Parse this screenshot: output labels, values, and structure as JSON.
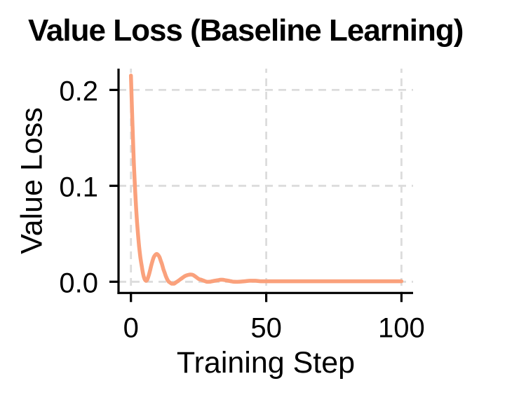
{
  "chart_data": {
    "type": "line",
    "title": "Value Loss (Baseline Learning)",
    "xlabel": "Training Step",
    "ylabel": "Value Loss",
    "x_ticks": [
      0,
      50,
      100
    ],
    "x_tick_labels": [
      "0",
      "50",
      "100"
    ],
    "y_ticks": [
      0.0,
      0.1,
      0.2
    ],
    "y_tick_labels": [
      "0.0",
      "0.1",
      "0.2"
    ],
    "xlim": [
      -4.6,
      104.3
    ],
    "ylim": [
      -0.0117,
      0.2222
    ],
    "grid": true,
    "grid_style": "dashed",
    "legend": null,
    "series": [
      {
        "name": "value-loss",
        "color": "#FAA17C",
        "points": [
          [
            0,
            0.215
          ],
          [
            0.5,
            0.168
          ],
          [
            1,
            0.128
          ],
          [
            1.5,
            0.098
          ],
          [
            2,
            0.072
          ],
          [
            2.5,
            0.053
          ],
          [
            3,
            0.037
          ],
          [
            3.5,
            0.025
          ],
          [
            4,
            0.016
          ],
          [
            4.5,
            0.008
          ],
          [
            5,
            0.003
          ],
          [
            5.5,
            0.001
          ],
          [
            6,
            0.002
          ],
          [
            6.5,
            0.006
          ],
          [
            7,
            0.011
          ],
          [
            7.5,
            0.017
          ],
          [
            8,
            0.022
          ],
          [
            8.5,
            0.026
          ],
          [
            9,
            0.028
          ],
          [
            9.5,
            0.029
          ],
          [
            10,
            0.028
          ],
          [
            10.5,
            0.026
          ],
          [
            11,
            0.022
          ],
          [
            11.5,
            0.018
          ],
          [
            12,
            0.013
          ],
          [
            12.5,
            0.009
          ],
          [
            13,
            0.005
          ],
          [
            13.5,
            0.002
          ],
          [
            14,
            0.0
          ],
          [
            14.5,
            -0.001
          ],
          [
            15,
            -0.002
          ],
          [
            15.5,
            -0.002
          ],
          [
            16,
            -0.002
          ],
          [
            16.5,
            -0.001
          ],
          [
            17,
            0.0
          ],
          [
            18,
            0.002
          ],
          [
            19,
            0.004
          ],
          [
            20,
            0.006
          ],
          [
            21,
            0.007
          ],
          [
            22,
            0.0075
          ],
          [
            23,
            0.007
          ],
          [
            24,
            0.005
          ],
          [
            25,
            0.003
          ],
          [
            26,
            0.002
          ],
          [
            27,
            0.001
          ],
          [
            28,
            0.0
          ],
          [
            29,
            0.0
          ],
          [
            30,
            0.0005
          ],
          [
            31,
            0.001
          ],
          [
            32,
            0.0015
          ],
          [
            33,
            0.002
          ],
          [
            34,
            0.002
          ],
          [
            35,
            0.0015
          ],
          [
            36,
            0.001
          ],
          [
            37,
            0.0005
          ],
          [
            38,
            0.0
          ],
          [
            40,
            0.0
          ],
          [
            42,
            0.0005
          ],
          [
            44,
            0.001
          ],
          [
            46,
            0.001
          ],
          [
            48,
            0.0005
          ],
          [
            50,
            0.0005
          ],
          [
            55,
            0.0005
          ],
          [
            60,
            0.0005
          ],
          [
            65,
            0.0005
          ],
          [
            70,
            0.0005
          ],
          [
            75,
            0.0005
          ],
          [
            80,
            0.0005
          ],
          [
            85,
            0.0005
          ],
          [
            90,
            0.0005
          ],
          [
            95,
            0.0005
          ],
          [
            100,
            0.0005
          ]
        ]
      }
    ],
    "colors": {
      "background": "#FFFFFF",
      "grid": "#DCDCDC",
      "axis": "#000000",
      "text": "#000000",
      "line": "#FAA17C"
    }
  }
}
